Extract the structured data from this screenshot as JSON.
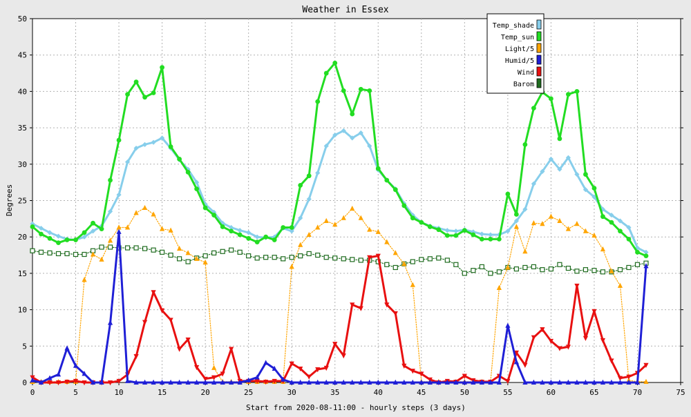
{
  "chart_data": {
    "type": "line",
    "title": "Weather in Essex",
    "xlabel": "Start from 2020-08-11:00 - hourly steps (3 days)",
    "ylabel": "Degrees",
    "xlim": [
      0,
      75
    ],
    "ylim": [
      0,
      50
    ],
    "xticks": [
      0,
      5,
      10,
      15,
      20,
      25,
      30,
      35,
      40,
      45,
      50,
      55,
      60,
      65,
      70,
      75
    ],
    "yticks": [
      0,
      5,
      10,
      15,
      20,
      25,
      30,
      35,
      40,
      45,
      50
    ],
    "grid": true,
    "legend_position": "top-right",
    "x": [
      0,
      1,
      2,
      3,
      4,
      5,
      6,
      7,
      8,
      9,
      10,
      11,
      12,
      13,
      14,
      15,
      16,
      17,
      18,
      19,
      20,
      21,
      22,
      23,
      24,
      25,
      26,
      27,
      28,
      29,
      30,
      31,
      32,
      33,
      34,
      35,
      36,
      37,
      38,
      39,
      40,
      41,
      42,
      43,
      44,
      45,
      46,
      47,
      48,
      49,
      50,
      51,
      52,
      53,
      54,
      55,
      56,
      57,
      58,
      59,
      60,
      61,
      62,
      63,
      64,
      65,
      66,
      67,
      68,
      69,
      70,
      71
    ],
    "series": [
      {
        "name": "Temp_shade",
        "color": "#87ceeb",
        "marker": "diamond",
        "style": "solid",
        "values": [
          21.8,
          21.2,
          20.6,
          20.1,
          19.7,
          19.6,
          20.0,
          20.8,
          21.5,
          23.5,
          25.8,
          30.3,
          32.2,
          32.7,
          33.0,
          33.6,
          32.2,
          30.6,
          29.3,
          27.5,
          24.5,
          23.4,
          21.9,
          21.3,
          20.9,
          20.6,
          20.0,
          19.9,
          20.0,
          21.2,
          20.8,
          22.6,
          25.2,
          28.8,
          32.5,
          34.0,
          34.6,
          33.6,
          34.3,
          32.5,
          29.2,
          27.8,
          26.6,
          24.6,
          23.0,
          22.0,
          21.5,
          21.2,
          20.9,
          20.8,
          21.0,
          20.7,
          20.4,
          20.3,
          20.3,
          20.8,
          22.2,
          23.8,
          27.3,
          29.0,
          30.7,
          29.3,
          30.9,
          28.6,
          26.5,
          25.5,
          23.8,
          23.0,
          22.2,
          21.3,
          18.5,
          17.9
        ]
      },
      {
        "name": "Temp_sun",
        "color": "#22dd22",
        "marker": "circle",
        "style": "solid",
        "values": [
          21.4,
          20.4,
          19.8,
          19.2,
          19.6,
          19.6,
          20.6,
          21.9,
          21.1,
          27.8,
          33.3,
          39.6,
          41.3,
          39.2,
          39.8,
          43.3,
          32.4,
          30.7,
          28.9,
          26.6,
          24.0,
          23.0,
          21.4,
          20.8,
          20.3,
          19.8,
          19.3,
          20.0,
          19.6,
          21.3,
          21.3,
          27.1,
          28.4,
          38.6,
          42.5,
          43.9,
          40.1,
          36.9,
          40.3,
          40.1,
          29.4,
          27.8,
          26.5,
          24.3,
          22.6,
          22.0,
          21.4,
          21.0,
          20.2,
          20.2,
          20.9,
          20.3,
          19.7,
          19.7,
          19.7,
          25.9,
          23.1,
          32.7,
          37.7,
          39.9,
          39.0,
          33.5,
          39.6,
          40.0,
          28.6,
          26.7,
          22.8,
          22.0,
          20.8,
          19.7,
          17.9,
          17.4
        ]
      },
      {
        "name": "Light/5",
        "color": "#ffa500",
        "marker": "triangle-up",
        "style": "dotted",
        "values": [
          0.1,
          0.1,
          0.1,
          0.1,
          0.1,
          0.1,
          14.1,
          17.6,
          16.9,
          19.5,
          21.3,
          21.3,
          23.3,
          24.0,
          23.1,
          21.1,
          20.9,
          18.4,
          17.8,
          17.0,
          16.5,
          2.0,
          0.1,
          0.1,
          0.1,
          0.1,
          0.1,
          0.1,
          0.1,
          0.1,
          15.9,
          18.9,
          20.3,
          21.3,
          22.2,
          21.7,
          22.6,
          23.9,
          22.6,
          21.0,
          20.7,
          19.3,
          17.8,
          16.3,
          13.4,
          0.1,
          0.1,
          0.1,
          0.1,
          0.1,
          0.1,
          0.1,
          0.1,
          0.1,
          13.0,
          15.8,
          21.4,
          18.0,
          21.9,
          21.8,
          22.8,
          22.2,
          21.1,
          21.8,
          20.8,
          20.2,
          18.3,
          15.3,
          13.3,
          0.3,
          0.1,
          0.1
        ]
      },
      {
        "name": "Humid/5",
        "color": "#1f1fd6",
        "marker": "triangle-up",
        "style": "solid",
        "values": [
          0.3,
          0.0,
          0.6,
          1.1,
          4.7,
          2.3,
          1.2,
          0.0,
          0.0,
          8.2,
          20.7,
          0.2,
          0.0,
          0.0,
          0.0,
          0.0,
          0.0,
          0.0,
          0.0,
          0.0,
          0.0,
          0.0,
          0.0,
          0.0,
          0.0,
          0.3,
          0.7,
          2.7,
          1.9,
          0.4,
          0.0,
          0.0,
          0.0,
          0.0,
          0.0,
          0.0,
          0.0,
          0.0,
          0.0,
          0.0,
          0.0,
          0.0,
          0.0,
          0.0,
          0.0,
          0.0,
          0.0,
          0.0,
          0.0,
          0.0,
          0.0,
          0.0,
          0.0,
          0.0,
          0.0,
          7.8,
          2.8,
          0.0,
          0.0,
          0.0,
          0.0,
          0.0,
          0.0,
          0.0,
          0.0,
          0.0,
          0.0,
          0.0,
          0.0,
          0.0,
          0.0,
          16.0
        ]
      },
      {
        "name": "Wind",
        "color": "#e81010",
        "marker": "triangle-down",
        "style": "solid",
        "values": [
          0.7,
          0.0,
          0.0,
          0.0,
          0.1,
          0.2,
          0.0,
          0.0,
          0.0,
          0.0,
          0.2,
          1.1,
          3.6,
          8.3,
          12.4,
          9.9,
          8.6,
          4.6,
          5.9,
          2.1,
          0.5,
          0.7,
          1.2,
          4.6,
          0.2,
          0.2,
          0.2,
          0.1,
          0.2,
          0.2,
          2.6,
          1.9,
          0.8,
          1.8,
          2.0,
          5.3,
          3.7,
          10.7,
          10.2,
          17.2,
          17.4,
          10.7,
          9.5,
          2.3,
          1.6,
          1.2,
          0.4,
          0.0,
          0.2,
          0.1,
          0.9,
          0.3,
          0.1,
          0.1,
          0.9,
          0.2,
          4.1,
          2.4,
          6.2,
          7.3,
          5.7,
          4.7,
          4.9,
          13.3,
          6.1,
          9.8,
          5.8,
          3.0,
          0.6,
          0.8,
          1.3,
          2.4
        ]
      },
      {
        "name": "Barom",
        "color": "#1e6b1e",
        "marker": "square",
        "style": "dotted",
        "values": [
          18.1,
          17.9,
          17.8,
          17.7,
          17.7,
          17.6,
          17.6,
          18.1,
          18.6,
          18.6,
          18.5,
          18.5,
          18.5,
          18.4,
          18.2,
          17.9,
          17.5,
          17.0,
          16.6,
          17.1,
          17.4,
          17.8,
          18.0,
          18.2,
          17.9,
          17.4,
          17.1,
          17.2,
          17.2,
          17.0,
          17.2,
          17.4,
          17.7,
          17.5,
          17.2,
          17.1,
          17.0,
          16.9,
          16.8,
          16.8,
          16.6,
          16.2,
          15.8,
          16.3,
          16.6,
          16.9,
          17.0,
          17.1,
          16.8,
          16.2,
          15.0,
          15.4,
          15.9,
          15.0,
          15.2,
          15.8,
          15.6,
          15.8,
          15.9,
          15.5,
          15.6,
          16.2,
          15.7,
          15.3,
          15.5,
          15.4,
          15.2,
          15.2,
          15.5,
          15.8,
          16.2,
          16.4
        ]
      }
    ]
  }
}
